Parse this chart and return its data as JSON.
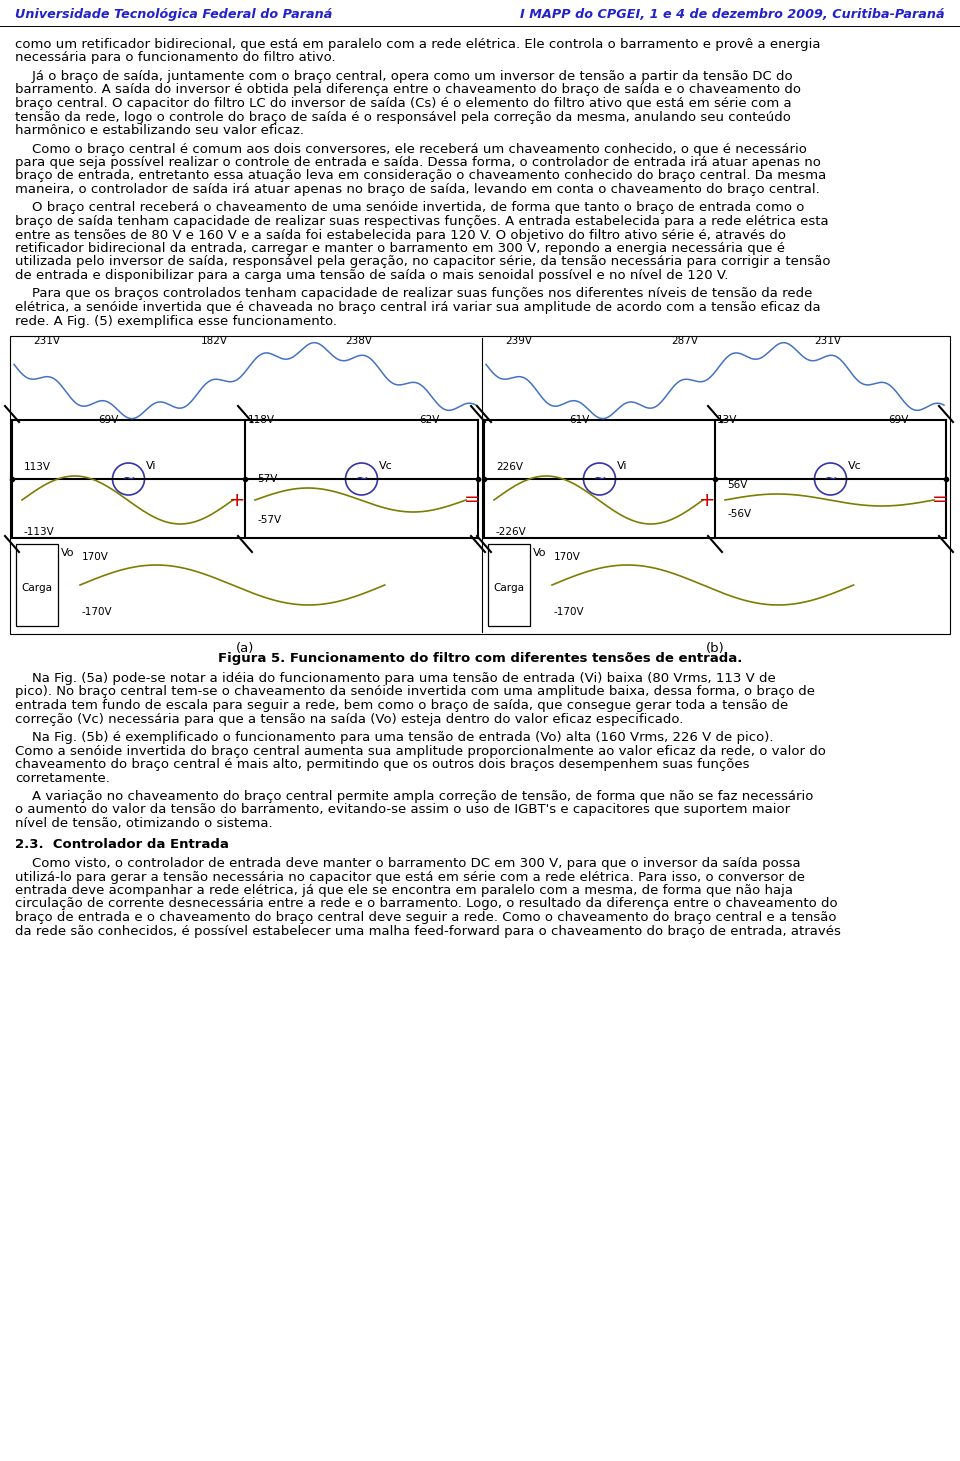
{
  "header_left": "Universidade Tecnológica Federal do Paraná",
  "header_right": "I MAPP do CPGEI, 1 e 4 de dezembro 2009, Curitiba-Paraná",
  "bg_color": "#ffffff",
  "header_color": "#2222cc",
  "wave_blue": "#4472c4",
  "wave_olive": "#7d7d00",
  "circ_color": "#3333aa",
  "plus_color": "#cc0000",
  "fig_caption": "Figura 5. Funcionamento do filtro com diferentes tensões de entrada.",
  "section_title": "2.3.  Controlador da Entrada",
  "body_before": [
    "como um retificador bidirecional, que está em paralelo com a rede elétrica. Ele controla o barramento e provê a energia",
    "necessária para o funcionamento do filtro ativo.",
    "",
    "    Já o braço de saída, juntamente com o braço central, opera como um inversor de tensão a partir da tensão DC do",
    "barramento. A saída do inversor é obtida pela diferença entre o chaveamento do braço de saída e o chaveamento do",
    "braço central. O capacitor do filtro LC do inversor de saída (Cs) é o elemento do filtro ativo que está em série com a",
    "tensão da rede, logo o controle do braço de saída é o responsável pela correção da mesma, anulando seu conteúdo",
    "harmônico e estabilizando seu valor eficaz.",
    "",
    "    Como o braço central é comum aos dois conversores, ele receberá um chaveamento conhecido, o que é necessário",
    "para que seja possível realizar o controle de entrada e saída. Dessa forma, o controlador de entrada irá atuar apenas no",
    "braço de entrada, entretanto essa atuação leva em consideração o chaveamento conhecido do braço central. Da mesma",
    "maneira, o controlador de saída irá atuar apenas no braço de saída, levando em conta o chaveamento do braço central.",
    "",
    "    O braço central receberá o chaveamento de uma senóide invertida, de forma que tanto o braço de entrada como o",
    "braço de saída tenham capacidade de realizar suas respectivas funções. A entrada estabelecida para a rede elétrica esta",
    "entre as tensões de 80 V e 160 V e a saída foi estabelecida para 120 V. O objetivo do filtro ativo série é, através do",
    "retificador bidirecional da entrada, carregar e manter o barramento em 300 V, repondo a energia necessária que é",
    "utilizada pelo inversor de saída, responsável pela geração, no capacitor série, da tensão necessária para corrigir a tensão",
    "de entrada e disponibilizar para a carga uma tensão de saída o mais senoidal possível e no nível de 120 V.",
    "",
    "    Para que os braços controlados tenham capacidade de realizar suas funções nos diferentes níveis de tensão da rede",
    "elétrica, a senóide invertida que é chaveada no braço central irá variar sua amplitude de acordo com a tensão eficaz da",
    "rede. A Fig. (5) exemplifica esse funcionamento."
  ],
  "body_after": [
    "    Na Fig. (5a) pode-se notar a idéia do funcionamento para uma tensão de entrada (Vi) baixa (80 Vrms, 113 V de",
    "pico). No braço central tem-se o chaveamento da senóide invertida com uma amplitude baixa, dessa forma, o braço de",
    "entrada tem fundo de escala para seguir a rede, bem como o braço de saída, que consegue gerar toda a tensão de",
    "correção (Vc) necessária para que a tensão na saída (Vo) esteja dentro do valor eficaz especificado.",
    "",
    "    Na Fig. (5b) é exemplificado o funcionamento para uma tensão de entrada (Vo) alta (160 Vrms, 226 V de pico).",
    "Como a senóide invertida do braço central aumenta sua amplitude proporcionalmente ao valor eficaz da rede, o valor do",
    "chaveamento do braço central é mais alto, permitindo que os outros dois braços desempenhem suas funções",
    "corretamente.",
    "",
    "    A variação no chaveamento do braço central permite ampla correção de tensão, de forma que não se faz necessário",
    "o aumento do valor da tensão do barramento, evitando-se assim o uso de IGBT's e capacitores que suportem maior",
    "nível de tensão, otimizando o sistema."
  ],
  "body_section": [
    "    Como visto, o controlador de entrada deve manter o barramento DC em 300 V, para que o inversor da saída possa",
    "utilizá-lo para gerar a tensão necessária no capacitor que está em série com a rede elétrica. Para isso, o conversor de",
    "entrada deve acompanhar a rede elétrica, já que ele se encontra em paralelo com a mesma, de forma que não haja",
    "circulação de corrente desnecessária entre a rede e o barramento. Logo, o resultado da diferença entre o chaveamento do",
    "braço de entrada e o chaveamento do braço central deve seguir a rede. Como o chaveamento do braço central e a tensão",
    "da rede são conhecidos, é possível estabelecer uma malha feed-forward para o chaveamento do braço de entrada, através"
  ],
  "panel_a": {
    "label": "(a)",
    "top_peaks": [
      {
        "xf": 0.045,
        "text": "231V",
        "peak": true
      },
      {
        "xf": 0.185,
        "text": "69V",
        "peak": false
      },
      {
        "xf": 0.405,
        "text": "182V",
        "peak": true
      },
      {
        "xf": 0.505,
        "text": "118V",
        "peak": false
      },
      {
        "xf": 0.715,
        "text": "238V",
        "peak": true
      },
      {
        "xf": 0.875,
        "text": "62V",
        "peak": false
      }
    ],
    "vi_pos": "113V",
    "vi_neg": "-113V",
    "vc_pos": "57V",
    "vc_neg": "-57V",
    "vo_pos": "170V",
    "vo_neg": "-170V",
    "vi_scale": 1.0,
    "vc_scale": 0.5
  },
  "panel_b": {
    "label": "(b)",
    "top_peaks": [
      {
        "xf": 0.045,
        "text": "239V",
        "peak": true
      },
      {
        "xf": 0.185,
        "text": "61V",
        "peak": false
      },
      {
        "xf": 0.405,
        "text": "287V",
        "peak": true
      },
      {
        "xf": 0.505,
        "text": "13V",
        "peak": false
      },
      {
        "xf": 0.715,
        "text": "231V",
        "peak": true
      },
      {
        "xf": 0.875,
        "text": "69V",
        "peak": false
      }
    ],
    "vi_pos": "226V",
    "vi_neg": "-226V",
    "vc_pos": "56V",
    "vc_neg": "-56V",
    "vo_pos": "170V",
    "vo_neg": "-170V",
    "vi_scale": 1.0,
    "vc_scale": 0.25
  }
}
